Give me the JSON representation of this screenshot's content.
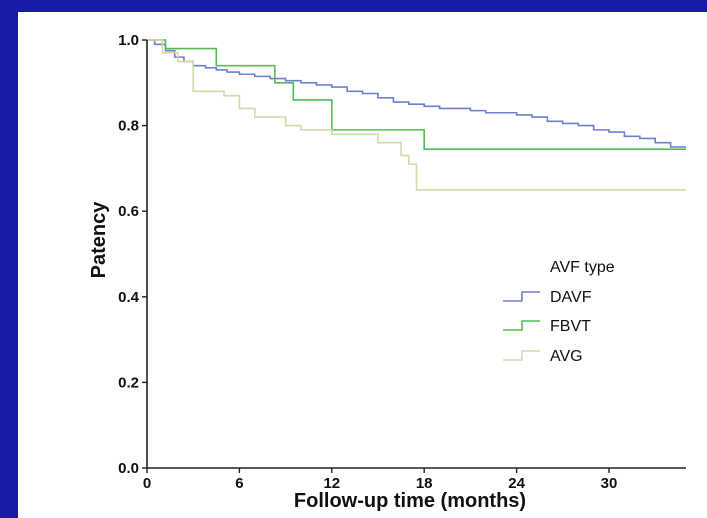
{
  "chart_data": {
    "type": "line",
    "xlabel": "Follow-up time (months)",
    "ylabel": "Patency",
    "xlim": [
      0,
      35
    ],
    "ylim": [
      0,
      1.0
    ],
    "x_ticks": [
      0,
      6,
      12,
      18,
      24,
      30
    ],
    "y_ticks": [
      0.0,
      0.2,
      0.4,
      0.6,
      0.8,
      1.0
    ],
    "x_tick_labels": [
      "0",
      "6",
      "12",
      "18",
      "24",
      "30"
    ],
    "y_tick_labels": [
      "0.0",
      "0.2",
      "0.4",
      "0.6",
      "0.8",
      "1.0"
    ],
    "grid": false,
    "legend_title": "AVF type",
    "legend_position": "right-middle",
    "series": [
      {
        "name": "DAVF",
        "color": "#6f7fcf",
        "x": [
          0,
          0.5,
          1.2,
          1.8,
          2.4,
          3.0,
          3.8,
          4.5,
          5.2,
          6.0,
          7.0,
          8.0,
          9.0,
          10.0,
          11.0,
          12.0,
          13.0,
          14.0,
          15.0,
          16.0,
          17.0,
          18.0,
          19.0,
          20.0,
          21.0,
          22.0,
          23.0,
          24.0,
          25.0,
          26.0,
          27.0,
          28.0,
          29.0,
          30.0,
          31.0,
          32.0,
          33.0,
          34.0,
          35.0
        ],
        "y": [
          1.0,
          0.99,
          0.975,
          0.96,
          0.95,
          0.94,
          0.935,
          0.93,
          0.925,
          0.92,
          0.915,
          0.91,
          0.905,
          0.9,
          0.895,
          0.89,
          0.88,
          0.875,
          0.865,
          0.855,
          0.85,
          0.845,
          0.84,
          0.84,
          0.835,
          0.83,
          0.83,
          0.825,
          0.82,
          0.81,
          0.805,
          0.8,
          0.79,
          0.785,
          0.775,
          0.77,
          0.76,
          0.75,
          0.75
        ]
      },
      {
        "name": "FBVT",
        "color": "#55bb55",
        "x": [
          0,
          1.2,
          4.5,
          8.3,
          9.5,
          12.0,
          13.0,
          17.0,
          18.0,
          35.0
        ],
        "y": [
          1.0,
          0.98,
          0.94,
          0.9,
          0.86,
          0.79,
          0.79,
          0.79,
          0.745,
          0.745
        ]
      },
      {
        "name": "AVG",
        "color": "#d8d8a8",
        "x": [
          0,
          1.0,
          2.0,
          3.0,
          5.0,
          6.0,
          7.0,
          9.0,
          10.0,
          12.0,
          15.0,
          16.5,
          17.0,
          17.5,
          35.0
        ],
        "y": [
          1.0,
          0.97,
          0.95,
          0.88,
          0.87,
          0.84,
          0.82,
          0.8,
          0.79,
          0.78,
          0.76,
          0.73,
          0.71,
          0.65,
          0.65
        ]
      }
    ]
  }
}
